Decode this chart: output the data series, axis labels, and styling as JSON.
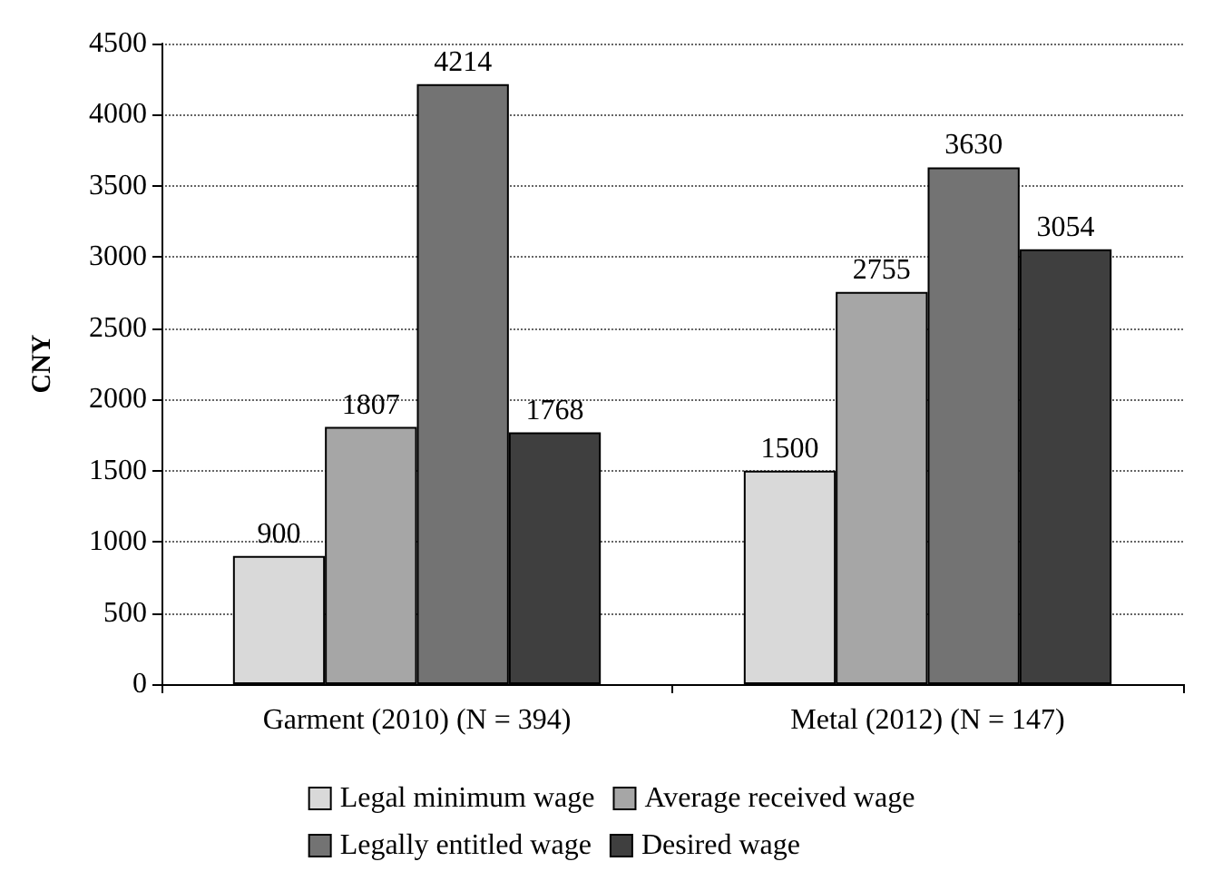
{
  "chart_data": {
    "type": "bar",
    "ylabel": "CNY",
    "categories": [
      "Garment (2010) (N = 394)",
      "Metal (2012) (N = 147)"
    ],
    "series": [
      {
        "name": "Legal minimum wage",
        "color": "#d9d9d9",
        "values": [
          900,
          1500
        ]
      },
      {
        "name": "Average received wage",
        "color": "#a6a6a6",
        "values": [
          1807,
          2755
        ]
      },
      {
        "name": "Legally entitled wage",
        "color": "#737373",
        "values": [
          4214,
          3630
        ]
      },
      {
        "name": "Desired wage",
        "color": "#3f3f3f",
        "values": [
          1768,
          3054
        ]
      }
    ],
    "ylim": [
      0,
      4500
    ],
    "yticks": [
      0,
      500,
      1000,
      1500,
      2000,
      2500,
      3000,
      3500,
      4000,
      4500
    ],
    "grid": "y",
    "legend": "bottom",
    "data_labels": true
  }
}
